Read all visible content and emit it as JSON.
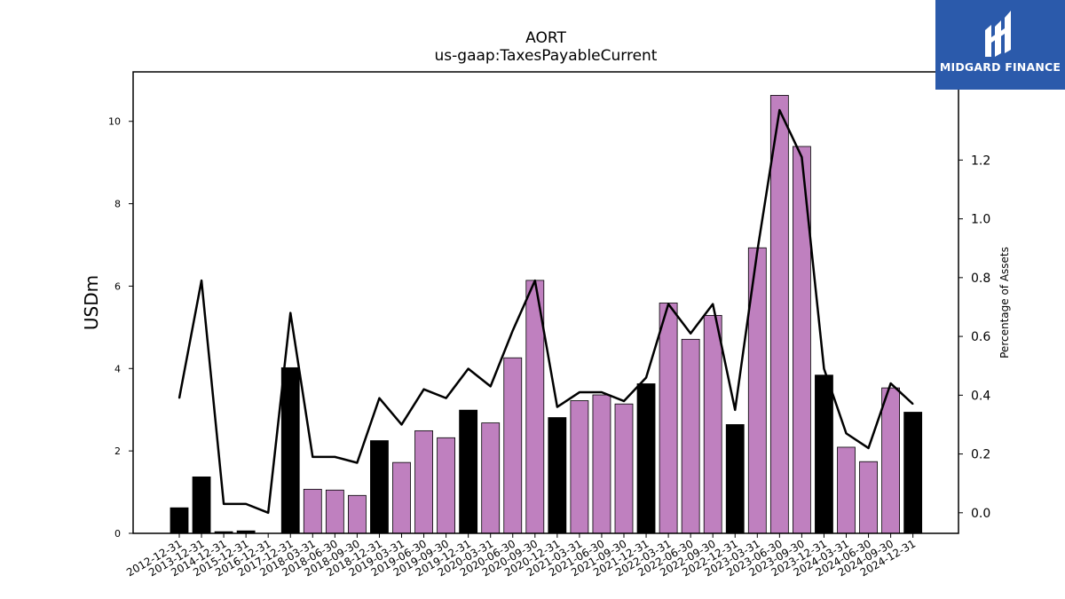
{
  "logo": {
    "text": "MIDGARD FINANCE"
  },
  "chart_data": {
    "type": "bar",
    "title": "AORT",
    "subtitle": "us-gaap:TaxesPayableCurrent",
    "ylabel": "USDm",
    "y2label": "Percentage of Assets",
    "ylim": [
      0,
      11.2
    ],
    "y2lim": [
      -0.07,
      1.5
    ],
    "yticks": [
      "0",
      "2",
      "4",
      "6",
      "8",
      "10"
    ],
    "y2ticks": [
      "0.0",
      "0.2",
      "0.4",
      "0.6",
      "0.8",
      "1.0",
      "1.2"
    ],
    "colors": {
      "annual": "#000000",
      "quarterly": "#bf80bf",
      "line": "#000000"
    },
    "categories": [
      "2012-12-31",
      "2013-12-31",
      "2014-12-31",
      "2015-12-31",
      "2016-12-31",
      "2017-12-31",
      "2018-03-31",
      "2018-06-30",
      "2018-09-30",
      "2018-12-31",
      "2019-03-31",
      "2019-06-30",
      "2019-09-30",
      "2019-12-31",
      "2020-03-31",
      "2020-06-30",
      "2020-09-30",
      "2020-12-31",
      "2021-03-31",
      "2021-06-30",
      "2021-09-30",
      "2021-12-31",
      "2022-03-31",
      "2022-06-30",
      "2022-09-30",
      "2022-12-31",
      "2023-03-31",
      "2023-06-30",
      "2023-09-30",
      "2023-12-31",
      "2024-03-31",
      "2024-06-30",
      "2024-09-30",
      "2024-12-31"
    ],
    "bar_kind": [
      "A",
      "A",
      "A",
      "A",
      "A",
      "A",
      "Q",
      "Q",
      "Q",
      "A",
      "Q",
      "Q",
      "Q",
      "A",
      "Q",
      "Q",
      "Q",
      "A",
      "Q",
      "Q",
      "Q",
      "A",
      "Q",
      "Q",
      "Q",
      "A",
      "Q",
      "Q",
      "Q",
      "A",
      "Q",
      "Q",
      "Q",
      "A"
    ],
    "series": [
      {
        "values": [
          0.62,
          1.37,
          0.04,
          0.06,
          0.0,
          4.02,
          1.07,
          1.05,
          0.92,
          2.25,
          1.72,
          2.49,
          2.32,
          2.99,
          2.68,
          4.26,
          6.14,
          2.81,
          3.22,
          3.36,
          3.14,
          3.63,
          5.59,
          4.71,
          5.29,
          2.64,
          6.93,
          10.63,
          9.39,
          3.84,
          2.09,
          1.74,
          3.53,
          2.94
        ]
      },
      {
        "values": [
          0.39,
          0.79,
          0.03,
          0.03,
          0.0,
          0.68,
          0.19,
          0.19,
          0.17,
          0.39,
          0.3,
          0.42,
          0.39,
          0.49,
          0.43,
          0.62,
          0.79,
          0.36,
          0.41,
          0.41,
          0.38,
          0.46,
          0.71,
          0.61,
          0.71,
          0.35,
          0.89,
          1.37,
          1.21,
          0.49,
          0.27,
          0.22,
          0.44,
          0.37
        ]
      }
    ]
  }
}
